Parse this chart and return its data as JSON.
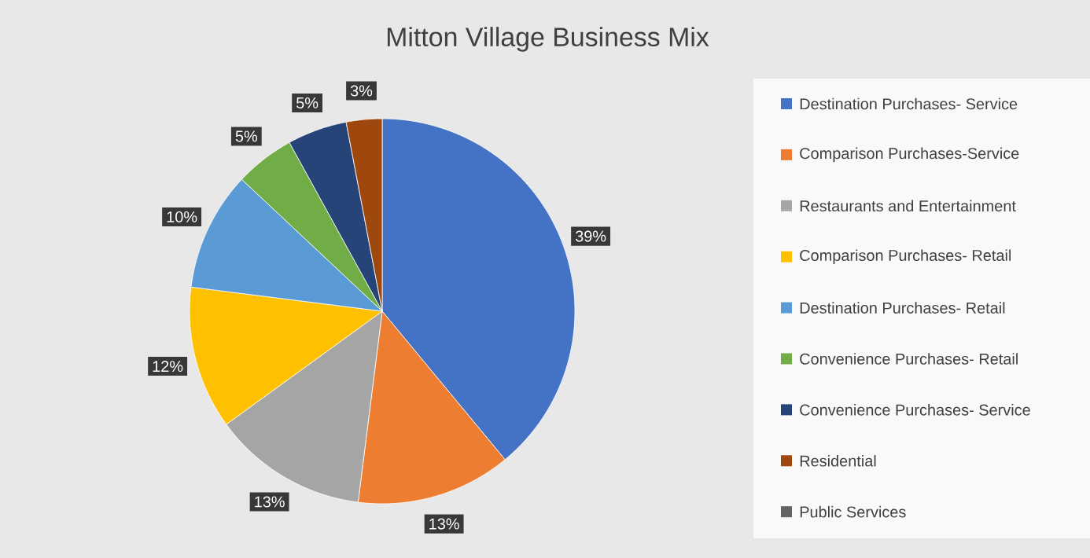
{
  "chart_data": {
    "type": "pie",
    "title": "Mitton Village Business Mix",
    "categories": [
      "Destination Purchases- Service",
      "Comparison Purchases-Service",
      "Restaurants and Entertainment",
      "Comparison Purchases- Retail",
      "Destination Purchases- Retail",
      "Convenience Purchases- Retail",
      "Convenience Purchases- Service",
      "Residential",
      "Public Services"
    ],
    "values": [
      39,
      13,
      13,
      12,
      10,
      5,
      5,
      3,
      0
    ],
    "colors": [
      "#4472c4",
      "#ed7d31",
      "#a5a5a5",
      "#ffc000",
      "#5b9bd5",
      "#70ad47",
      "#264478",
      "#9e480e",
      "#636363"
    ],
    "value_labels": [
      "39%",
      "13%",
      "13%",
      "12%",
      "10%",
      "5%",
      "5%",
      "3%",
      null
    ],
    "legend": "right"
  }
}
